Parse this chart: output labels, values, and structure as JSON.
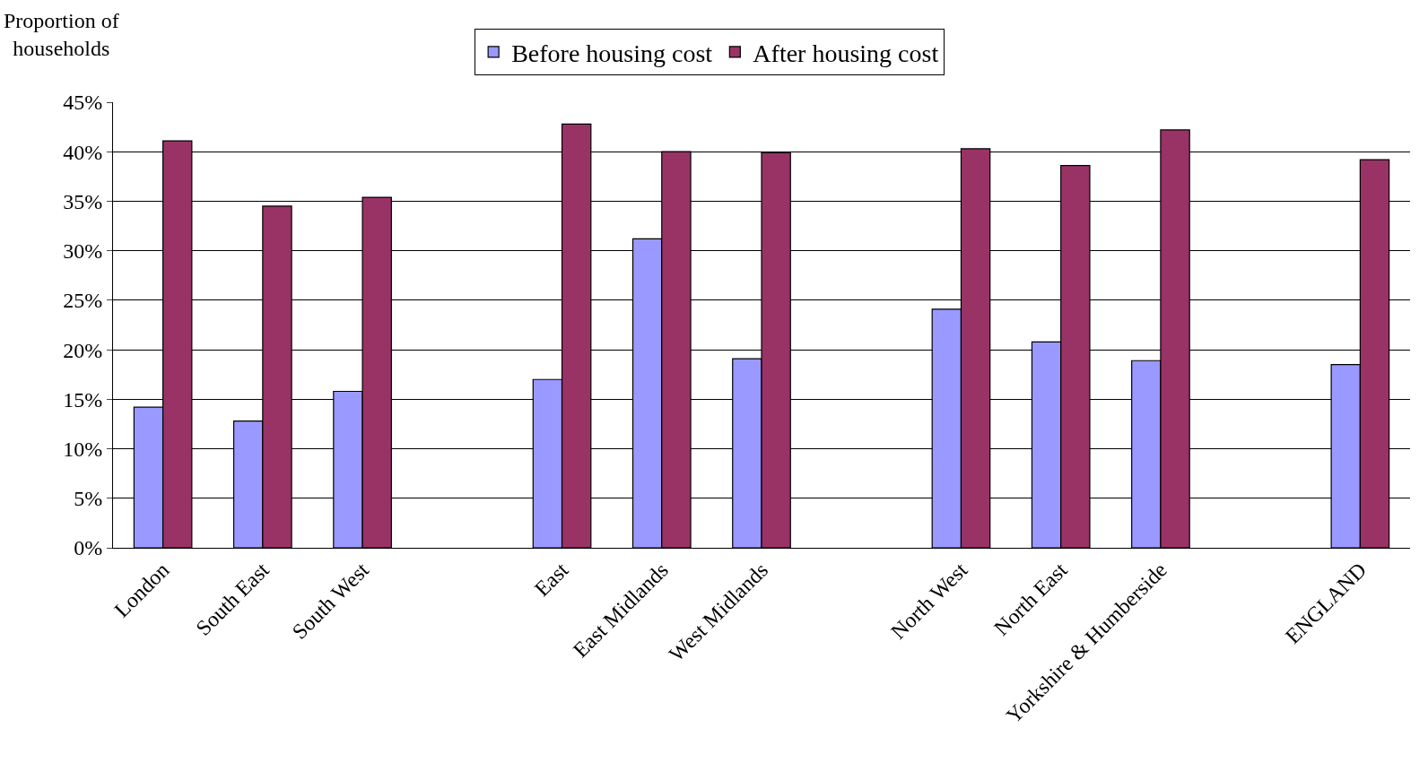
{
  "chart_data": {
    "type": "bar",
    "ylabel": "Proportion of\nhouseholds",
    "categories": [
      "London",
      "South East",
      "South West",
      null,
      "East",
      "East Midlands",
      "West Midlands",
      null,
      "North West",
      "North East",
      "Yorkshire & Humberside",
      null,
      "ENGLAND"
    ],
    "series": [
      {
        "name": "Before housing cost",
        "color": "#9999ff",
        "values": [
          14.2,
          12.8,
          15.8,
          null,
          17.0,
          31.2,
          19.1,
          null,
          24.1,
          20.8,
          18.9,
          null,
          18.5
        ]
      },
      {
        "name": "After housing cost",
        "color": "#993366",
        "values": [
          41.1,
          34.5,
          35.4,
          null,
          42.8,
          40.0,
          39.9,
          null,
          40.3,
          38.6,
          42.2,
          null,
          39.2
        ]
      }
    ],
    "ylim": [
      0,
      45
    ],
    "yticks": [
      {
        "value": 0,
        "label": "0%"
      },
      {
        "value": 5,
        "label": "5%"
      },
      {
        "value": 10,
        "label": "10%"
      },
      {
        "value": 15,
        "label": "15%"
      },
      {
        "value": 20,
        "label": "20%"
      },
      {
        "value": 25,
        "label": "25%"
      },
      {
        "value": 30,
        "label": "30%"
      },
      {
        "value": 35,
        "label": "35%"
      },
      {
        "value": 40,
        "label": "40%"
      },
      {
        "value": 45,
        "label": "45%"
      }
    ],
    "grid": "y",
    "legend": "top"
  }
}
